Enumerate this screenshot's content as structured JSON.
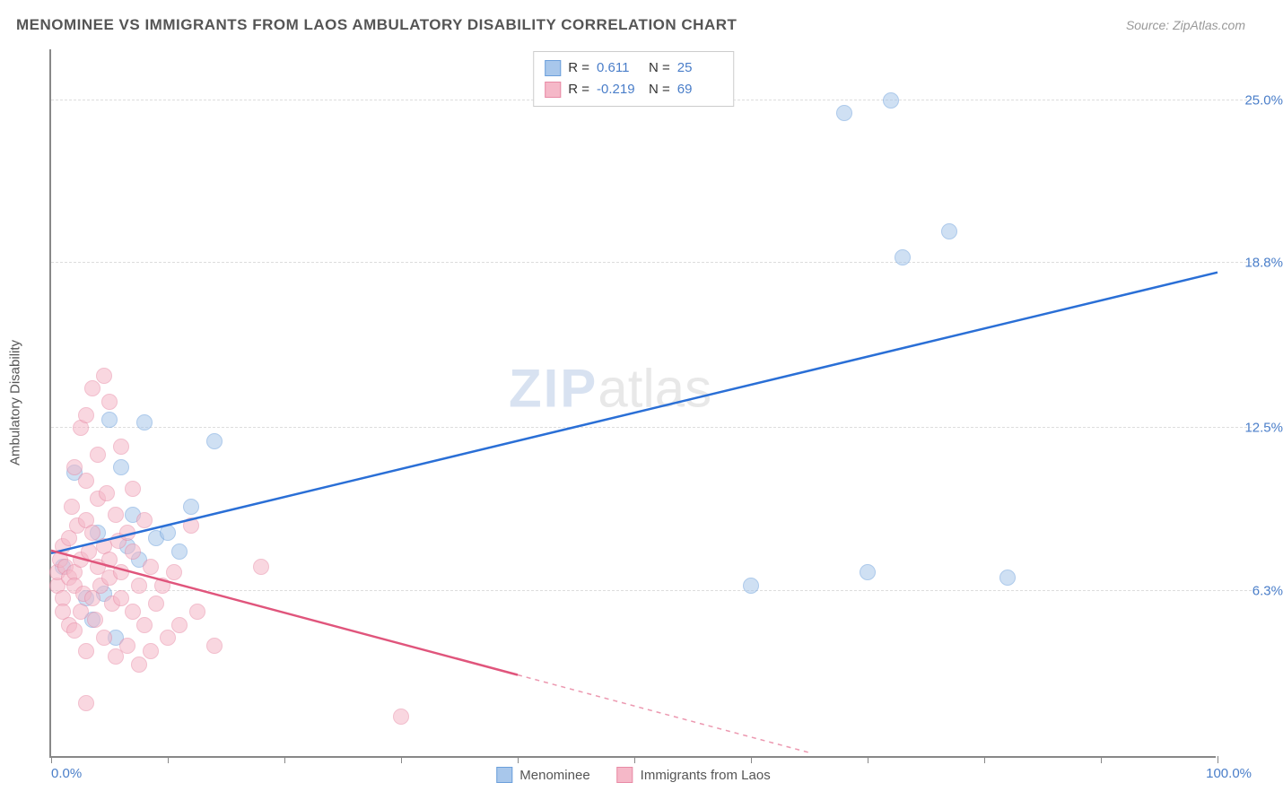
{
  "title": "MENOMINEE VS IMMIGRANTS FROM LAOS AMBULATORY DISABILITY CORRELATION CHART",
  "source_label": "Source: ZipAtlas.com",
  "watermark": {
    "part1": "ZIP",
    "part2": "atlas"
  },
  "y_axis_label": "Ambulatory Disability",
  "chart": {
    "type": "scatter",
    "background_color": "#ffffff",
    "grid_color": "#dddddd",
    "axis_color": "#888888",
    "text_color": "#555555",
    "value_color": "#4a7ec9",
    "xlim": [
      0,
      100
    ],
    "ylim": [
      0,
      27
    ],
    "x_ticks": [
      0,
      10,
      20,
      30,
      40,
      50,
      60,
      70,
      80,
      90,
      100
    ],
    "x_min_label": "0.0%",
    "x_max_label": "100.0%",
    "y_gridlines": [
      {
        "value": 6.3,
        "label": "6.3%"
      },
      {
        "value": 12.5,
        "label": "12.5%"
      },
      {
        "value": 18.8,
        "label": "18.8%"
      },
      {
        "value": 25.0,
        "label": "25.0%"
      }
    ],
    "point_radius": 9,
    "point_opacity": 0.55,
    "series": [
      {
        "name": "Menominee",
        "fill_color": "#a8c7eb",
        "stroke_color": "#6b9fdb",
        "R": "0.611",
        "N": "25",
        "regression": {
          "x1": 0,
          "y1": 7.8,
          "x2": 100,
          "y2": 18.5,
          "solid_to_x": 100
        },
        "line_color": "#2a6fd6",
        "points": [
          [
            1,
            7.2
          ],
          [
            2,
            10.8
          ],
          [
            3,
            6.0
          ],
          [
            3.5,
            5.2
          ],
          [
            4,
            8.5
          ],
          [
            4.5,
            6.2
          ],
          [
            5,
            12.8
          ],
          [
            5.5,
            4.5
          ],
          [
            6,
            11.0
          ],
          [
            6.5,
            8.0
          ],
          [
            7,
            9.2
          ],
          [
            7.5,
            7.5
          ],
          [
            8,
            12.7
          ],
          [
            9,
            8.3
          ],
          [
            10,
            8.5
          ],
          [
            11,
            7.8
          ],
          [
            12,
            9.5
          ],
          [
            14,
            12.0
          ],
          [
            60,
            6.5
          ],
          [
            68,
            24.5
          ],
          [
            70,
            7.0
          ],
          [
            72,
            25.0
          ],
          [
            73,
            19.0
          ],
          [
            77,
            20.0
          ],
          [
            82,
            6.8
          ]
        ]
      },
      {
        "name": "Immigrants from Laos",
        "fill_color": "#f5b8c8",
        "stroke_color": "#e88aa5",
        "R": "-0.219",
        "N": "69",
        "regression": {
          "x1": 0,
          "y1": 7.9,
          "x2": 65,
          "y2": 0.2,
          "solid_to_x": 40
        },
        "line_color": "#e0557c",
        "points": [
          [
            0.5,
            6.5
          ],
          [
            0.5,
            7.0
          ],
          [
            0.8,
            7.5
          ],
          [
            1,
            6.0
          ],
          [
            1,
            8.0
          ],
          [
            1,
            5.5
          ],
          [
            1.2,
            7.2
          ],
          [
            1.5,
            6.8
          ],
          [
            1.5,
            8.3
          ],
          [
            1.5,
            5.0
          ],
          [
            1.8,
            9.5
          ],
          [
            2,
            7.0
          ],
          [
            2,
            6.5
          ],
          [
            2,
            11.0
          ],
          [
            2,
            4.8
          ],
          [
            2.2,
            8.8
          ],
          [
            2.5,
            7.5
          ],
          [
            2.5,
            12.5
          ],
          [
            2.5,
            5.5
          ],
          [
            2.8,
            6.2
          ],
          [
            3,
            9.0
          ],
          [
            3,
            10.5
          ],
          [
            3,
            13.0
          ],
          [
            3,
            4.0
          ],
          [
            3.2,
            7.8
          ],
          [
            3.5,
            8.5
          ],
          [
            3.5,
            6.0
          ],
          [
            3.5,
            14.0
          ],
          [
            3.8,
            5.2
          ],
          [
            4,
            9.8
          ],
          [
            4,
            7.2
          ],
          [
            4,
            11.5
          ],
          [
            4.2,
            6.5
          ],
          [
            4.5,
            14.5
          ],
          [
            4.5,
            4.5
          ],
          [
            4.5,
            8.0
          ],
          [
            4.8,
            10.0
          ],
          [
            5,
            13.5
          ],
          [
            5,
            6.8
          ],
          [
            5,
            7.5
          ],
          [
            5.2,
            5.8
          ],
          [
            5.5,
            9.2
          ],
          [
            5.5,
            3.8
          ],
          [
            5.8,
            8.2
          ],
          [
            6,
            11.8
          ],
          [
            6,
            6.0
          ],
          [
            6,
            7.0
          ],
          [
            6.5,
            4.2
          ],
          [
            6.5,
            8.5
          ],
          [
            7,
            10.2
          ],
          [
            7,
            5.5
          ],
          [
            7,
            7.8
          ],
          [
            7.5,
            6.5
          ],
          [
            7.5,
            3.5
          ],
          [
            8,
            9.0
          ],
          [
            8,
            5.0
          ],
          [
            8.5,
            7.2
          ],
          [
            8.5,
            4.0
          ],
          [
            9,
            5.8
          ],
          [
            9.5,
            6.5
          ],
          [
            10,
            4.5
          ],
          [
            10.5,
            7.0
          ],
          [
            11,
            5.0
          ],
          [
            12,
            8.8
          ],
          [
            12.5,
            5.5
          ],
          [
            14,
            4.2
          ],
          [
            18,
            7.2
          ],
          [
            3,
            2.0
          ],
          [
            30,
            1.5
          ]
        ]
      }
    ]
  },
  "legend_bottom": [
    {
      "label": "Menominee",
      "fill": "#a8c7eb",
      "stroke": "#6b9fdb"
    },
    {
      "label": "Immigrants from Laos",
      "fill": "#f5b8c8",
      "stroke": "#e88aa5"
    }
  ]
}
